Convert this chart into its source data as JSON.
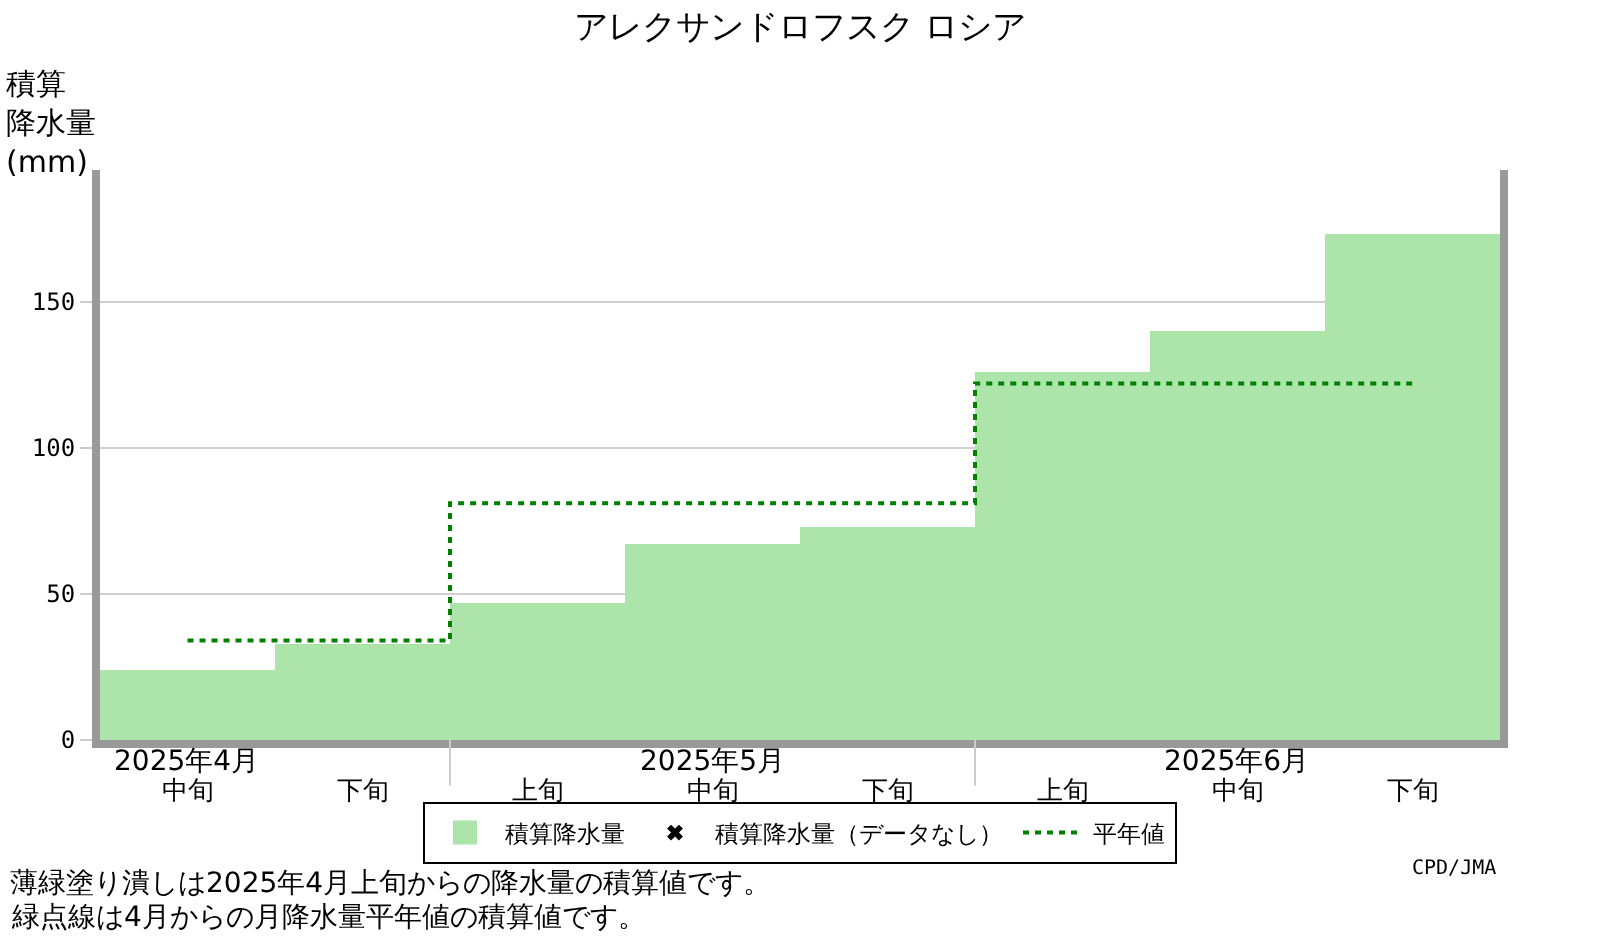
{
  "chart_data": {
    "type": "bar",
    "title": "アレクサンドロフスク ロシア",
    "ylabel": "積算降水量(mm)",
    "categories": [
      "中旬",
      "下旬",
      "上旬",
      "中旬",
      "下旬",
      "上旬",
      "中旬",
      "下旬"
    ],
    "series": [
      {
        "name": "積算降水量",
        "color": "#ace4aa",
        "values": [
          24,
          33,
          47,
          67,
          73,
          126,
          140,
          173
        ]
      },
      {
        "name": "積算降水量（データなし）",
        "type": "scatter",
        "marker": "cross",
        "color": "#000000",
        "values": [
          null,
          null,
          null,
          null,
          null,
          null,
          null,
          null
        ]
      },
      {
        "name": "平年値",
        "type": "step",
        "color": "#008000",
        "line_style": "dotted",
        "values": [
          34,
          34,
          81,
          81,
          81,
          122,
          122,
          122
        ]
      }
    ],
    "ylim": [
      0,
      195
    ],
    "yticks": [
      0,
      50,
      100,
      150
    ],
    "grid": "y",
    "legend": "bottom",
    "annotations": [
      "2025年4月",
      "2025年5月",
      "2025年6月",
      "CPD/JMA",
      "薄緑塗り潰しは2025年4月上旬からの降水量の積算値です。",
      "緑点線は4月からの月降水量平年値の積算値です。"
    ]
  }
}
